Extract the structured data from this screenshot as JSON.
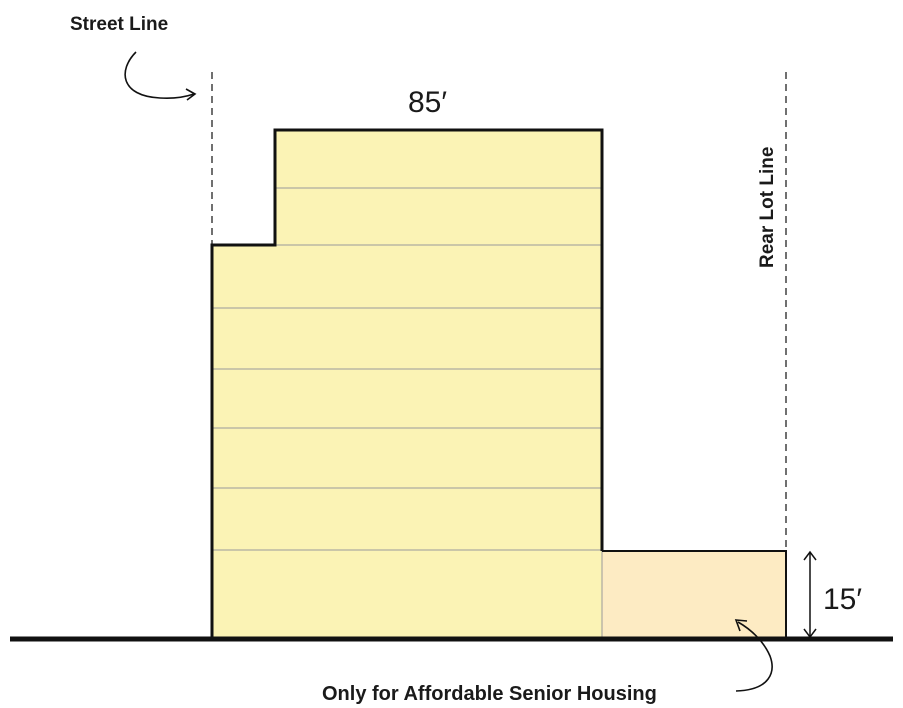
{
  "labels": {
    "street_line": "Street Line",
    "rear_lot_line": "Rear Lot Line",
    "main_height": "85′",
    "rear_height": "15′",
    "note": "Only for Affordable Senior Housing"
  },
  "colors": {
    "building_fill": "#FBF3B5",
    "rear_fill": "#FDEBC3",
    "outline": "#111111",
    "floor_lines": "#9a9a9a",
    "note": "#E8242B"
  }
}
